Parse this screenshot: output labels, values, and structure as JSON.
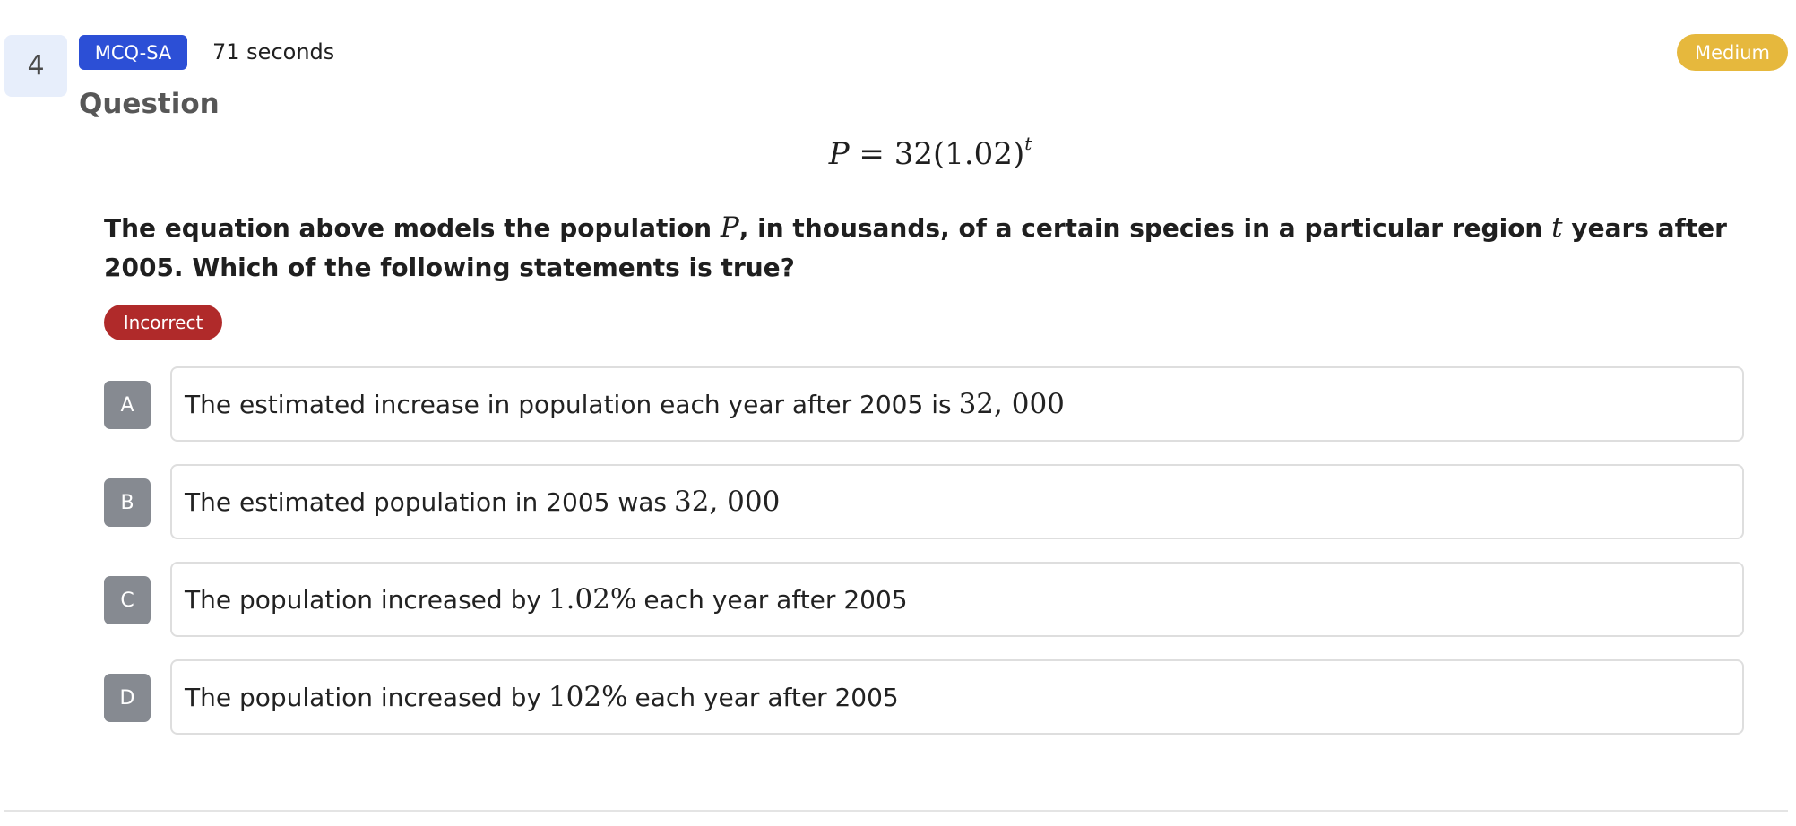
{
  "question": {
    "number": "4",
    "type": "MCQ-SA",
    "time": "71 seconds",
    "difficulty": "Medium",
    "section_title": "Question",
    "equation": {
      "lhs": "P",
      "rhs": "= 32(1.02)",
      "exponent": "t"
    },
    "text_parts": [
      "The equation above models the population ",
      "P",
      ", in thousands, of a certain species in a particular region ",
      "t",
      " years after 2005. Which of the following statements is true?"
    ],
    "status": "Incorrect"
  },
  "options": [
    {
      "letter": "A",
      "text": "The estimated increase in population each year after 2005 is",
      "math": "32, 000",
      "after": ""
    },
    {
      "letter": "B",
      "text": "The estimated population in 2005 was",
      "math": "32, 000",
      "after": ""
    },
    {
      "letter": "C",
      "text": "The population increased by",
      "math": "1.02%",
      "after": "each year after 2005"
    },
    {
      "letter": "D",
      "text": "The population increased by",
      "math": "102%",
      "after": "each year after 2005"
    }
  ],
  "colors": {
    "type_badge": "#2c4fd6",
    "difficulty_badge": "#e6b83d",
    "status_incorrect": "#b02a2a",
    "option_letter_bg": "#868a91",
    "question_number_bg": "#e7eefb"
  }
}
